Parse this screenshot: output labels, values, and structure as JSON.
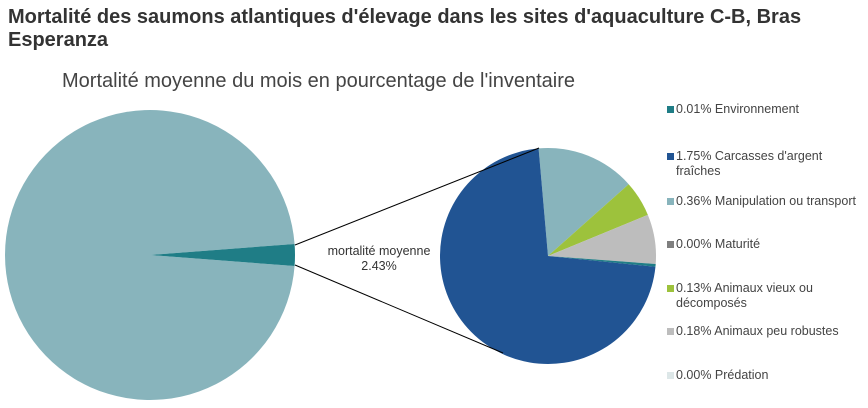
{
  "title": "Mortalité des saumons atlantiques d'élevage dans les sites d'aquaculture C-B, Bras Esperanza",
  "chart_data": {
    "type": "pie",
    "subtype": "pie-of-pie",
    "title": "Mortalité moyenne du mois en pourcentage de l'inventaire",
    "main_pie": {
      "slices": [
        {
          "label": "",
          "value": 97.57,
          "color": "#88B4BC"
        },
        {
          "label": "mortalité moyenne",
          "value_label": "2.43%",
          "value": 2.43,
          "color": "#1F7D86"
        }
      ]
    },
    "secondary_pie": {
      "slices": [
        {
          "label": "Manipulation ou transport",
          "value": 0.36,
          "color": "#88B4BC"
        },
        {
          "label": "Animaux vieux ou décomposés",
          "value": 0.13,
          "color": "#9DC23C"
        },
        {
          "label": "Animaux peu robustes",
          "value": 0.18,
          "color": "#BDBDBD"
        },
        {
          "label": "Maturité",
          "value": 0.0,
          "color": "#7F7F7F"
        },
        {
          "label": "Prédation",
          "value": 0.0,
          "color": "#DDE7E8"
        },
        {
          "label": "Environnement",
          "value": 0.01,
          "color": "#1F7D86"
        },
        {
          "label": "Carcasses d'argent fraîches",
          "value": 1.75,
          "color": "#215493"
        }
      ]
    },
    "legend": {
      "position": "right",
      "items": [
        {
          "text": "0.01% Environnement",
          "color": "#1F7D86"
        },
        {
          "text": "1.75% Carcasses d'argent fraîches",
          "color": "#215493"
        },
        {
          "text": "0.36% Manipulation ou transport",
          "color": "#88B4BC"
        },
        {
          "text": "0.00% Maturité",
          "color": "#7F7F7F"
        },
        {
          "text": "0.13% Animaux vieux ou décomposés",
          "color": "#9DC23C"
        },
        {
          "text": "0.18% Animaux peu robustes",
          "color": "#BDBDBD"
        },
        {
          "text": "0.00% Prédation",
          "color": "#DDE7E8"
        }
      ]
    }
  }
}
